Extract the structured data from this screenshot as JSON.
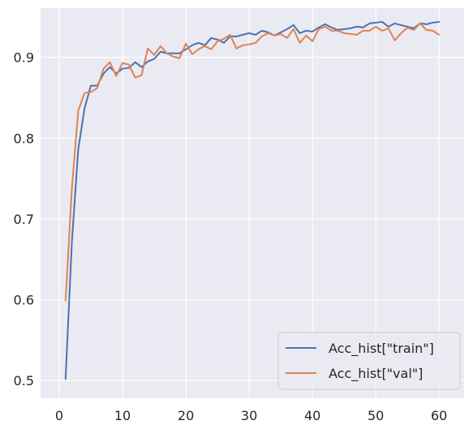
{
  "chart_data": {
    "type": "line",
    "title": "",
    "xlabel": "",
    "ylabel": "",
    "xlim": [
      -2.95,
      63.95
    ],
    "ylim": [
      0.478,
      0.961
    ],
    "x_ticks": [
      0,
      10,
      20,
      30,
      40,
      50,
      60
    ],
    "y_ticks": [
      0.5,
      0.6,
      0.7,
      0.8,
      0.9
    ],
    "y_tick_labels": [
      "0.5",
      "0.6",
      "0.7",
      "0.8",
      "0.9"
    ],
    "grid": true,
    "style": "seaborn-darkgrid",
    "background_color": "#eaeaf2",
    "legend_position": "lower right",
    "x": [
      1,
      2,
      3,
      4,
      5,
      6,
      7,
      8,
      9,
      10,
      11,
      12,
      13,
      14,
      15,
      16,
      17,
      18,
      19,
      20,
      21,
      22,
      23,
      24,
      25,
      26,
      27,
      28,
      29,
      30,
      31,
      32,
      33,
      34,
      35,
      36,
      37,
      38,
      39,
      40,
      41,
      42,
      43,
      44,
      45,
      46,
      47,
      48,
      49,
      50,
      51,
      52,
      53,
      54,
      55,
      56,
      57,
      58,
      59,
      60
    ],
    "series": [
      {
        "name": "Acc_hist[\"train\"]",
        "color": "#4c72b0",
        "values": [
          0.502,
          0.672,
          0.786,
          0.837,
          0.865,
          0.865,
          0.88,
          0.888,
          0.88,
          0.886,
          0.887,
          0.894,
          0.888,
          0.895,
          0.898,
          0.907,
          0.905,
          0.905,
          0.905,
          0.91,
          0.915,
          0.918,
          0.915,
          0.924,
          0.922,
          0.918,
          0.926,
          0.926,
          0.928,
          0.93,
          0.928,
          0.933,
          0.931,
          0.927,
          0.931,
          0.935,
          0.94,
          0.93,
          0.933,
          0.932,
          0.937,
          0.941,
          0.937,
          0.934,
          0.935,
          0.936,
          0.938,
          0.937,
          0.942,
          0.943,
          0.944,
          0.938,
          0.942,
          0.94,
          0.938,
          0.936,
          0.942,
          0.941,
          0.943,
          0.944
        ]
      },
      {
        "name": "Acc_hist[\"val\"]",
        "color": "#dd8452",
        "values": [
          0.599,
          0.738,
          0.834,
          0.856,
          0.857,
          0.862,
          0.886,
          0.894,
          0.877,
          0.893,
          0.891,
          0.875,
          0.878,
          0.911,
          0.903,
          0.914,
          0.905,
          0.901,
          0.899,
          0.917,
          0.904,
          0.91,
          0.914,
          0.91,
          0.92,
          0.923,
          0.928,
          0.911,
          0.915,
          0.916,
          0.918,
          0.926,
          0.93,
          0.927,
          0.929,
          0.924,
          0.935,
          0.918,
          0.927,
          0.92,
          0.935,
          0.938,
          0.933,
          0.933,
          0.93,
          0.929,
          0.928,
          0.933,
          0.933,
          0.938,
          0.933,
          0.936,
          0.921,
          0.93,
          0.937,
          0.934,
          0.942,
          0.934,
          0.933,
          0.928
        ]
      }
    ]
  }
}
